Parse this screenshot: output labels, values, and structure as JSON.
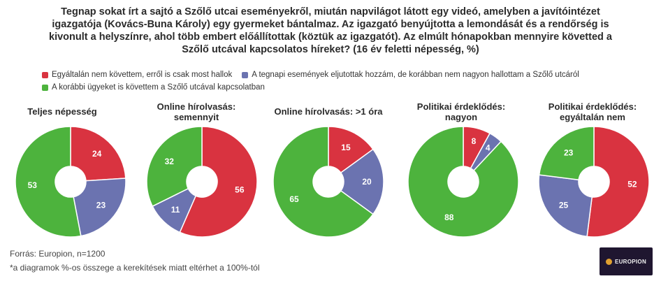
{
  "title_lines": [
    "Tegnap sokat írt a sajtó a Szőlő utcai eseményekről, miután napvilágot látott egy videó, amelyben a javítóintézet",
    "igazgatója (Kovács-Buna Károly) egy gyermeket bántalmaz. Az igazgató benyújtotta a lemondását és a rendőrség is",
    "kivonult a helyszínre, ahol több embert előállítottak (köztük az igazgatót). Az elmúlt hónapokban mennyire követted a",
    "Szőlő utcával kapcsolatos híreket? (16 év feletti népesség, %)"
  ],
  "legend": [
    {
      "label": "Egyáltalán nem követtem, erről is csak most hallok",
      "color": "#d93340"
    },
    {
      "label": "A tegnapi események eljutottak hozzám, de korábban nem nagyon hallottam a Szőlő utcáról",
      "color": "#6b73b0"
    },
    {
      "label": "A korábbi ügyeket is követtem a Szőlő utcával kapcsolatban",
      "color": "#4db33d"
    }
  ],
  "chart_data": [
    {
      "type": "pie",
      "title": [
        "Teljes népesség"
      ],
      "values": [
        24,
        23,
        53
      ]
    },
    {
      "type": "pie",
      "title": [
        "Online hírolvasás:",
        "semennyit"
      ],
      "values": [
        56,
        11,
        32
      ]
    },
    {
      "type": "pie",
      "title": [
        "Online hírolvasás: >1 óra"
      ],
      "values": [
        15,
        20,
        65
      ]
    },
    {
      "type": "pie",
      "title": [
        "Politikai érdeklődés:",
        "nagyon"
      ],
      "values": [
        8,
        4,
        88
      ]
    },
    {
      "type": "pie",
      "title": [
        "Politikai érdeklődés:",
        "egyáltalán nem"
      ],
      "values": [
        52,
        25,
        23
      ]
    }
  ],
  "footer": {
    "source": "Forrás: Europion, n=1200",
    "note": "*a diagramok %-os összege a kerekítések miatt eltérhet a 100%-tól"
  },
  "logo": {
    "text": "EUROPION"
  }
}
